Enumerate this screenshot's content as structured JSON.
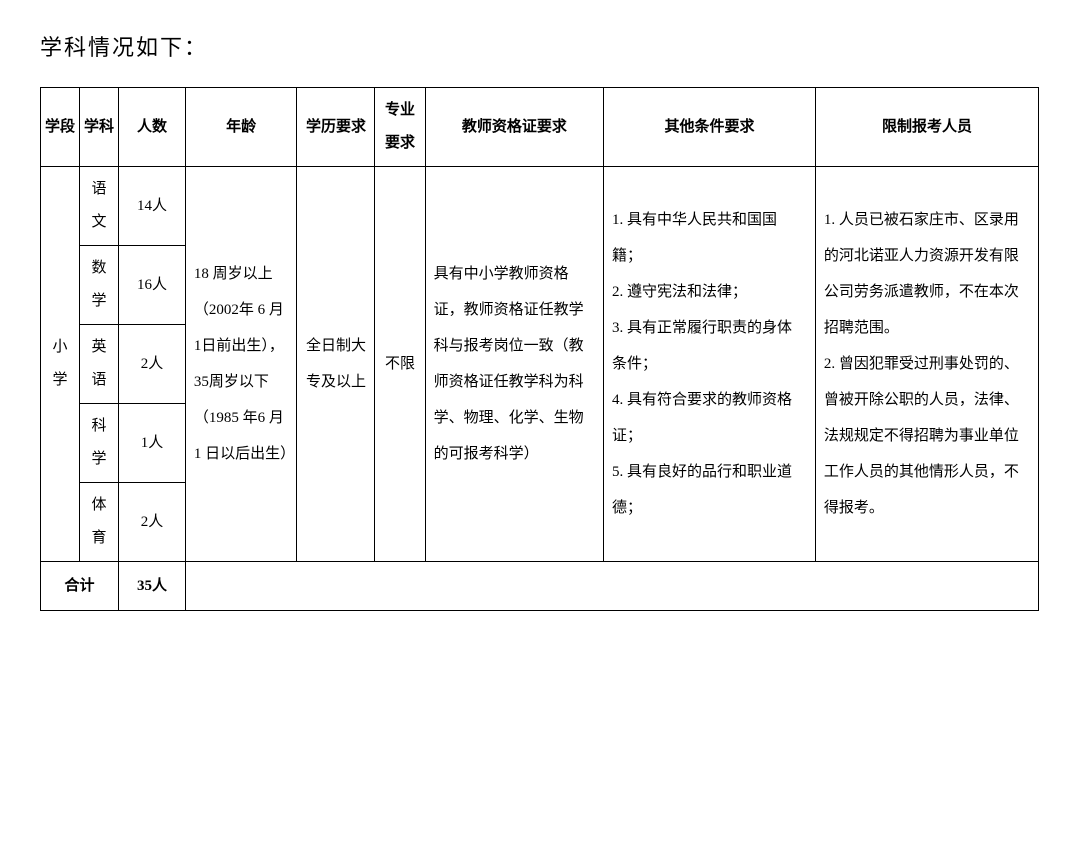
{
  "title": "学科情况如下：",
  "headers": {
    "stage": "学段",
    "subject": "学科",
    "count": "人数",
    "age": "年龄",
    "education": "学历要求",
    "major": "专业要求",
    "cert": "教师资格证要求",
    "other": "其他条件要求",
    "restrict": "限制报考人员"
  },
  "stage": "小学",
  "subjects": [
    {
      "name": "语文",
      "count": "14人"
    },
    {
      "name": "数学",
      "count": "16人"
    },
    {
      "name": "英语",
      "count": "2人"
    },
    {
      "name": "科学",
      "count": "1人"
    },
    {
      "name": "体育",
      "count": "2人"
    }
  ],
  "age": "18 周岁以上（2002年 6 月 1日前出生），35周岁以下（1985 年6 月 1 日以后出生）",
  "education": "全日制大专及以上",
  "major": "不限",
  "cert": "具有中小学教师资格证，教师资格证任教学科与报考岗位一致（教师资格证任教学科为科学、物理、化学、生物的可报考科学）",
  "other": "1. 具有中华人民共和国国籍；\n2. 遵守宪法和法律；\n3. 具有正常履行职责的身体条件；\n4. 具有符合要求的教师资格证；\n5. 具有良好的品行和职业道德；",
  "restrict": "1. 人员已被石家庄市、区录用的河北诺亚人力资源开发有限公司劳务派遣教师，不在本次招聘范围。\n2. 曾因犯罪受过刑事处罚的、曾被开除公职的人员，法律、法规规定不得招聘为事业单位工作人员的其他情形人员，不得报考。",
  "total": {
    "label": "合计",
    "value": "35人"
  },
  "table_style": {
    "border_color": "#000000",
    "background": "#ffffff",
    "text_color": "#000000",
    "font_family": "SimSun",
    "header_fontsize": 15,
    "cell_fontsize": 15,
    "line_height": 2.4
  }
}
